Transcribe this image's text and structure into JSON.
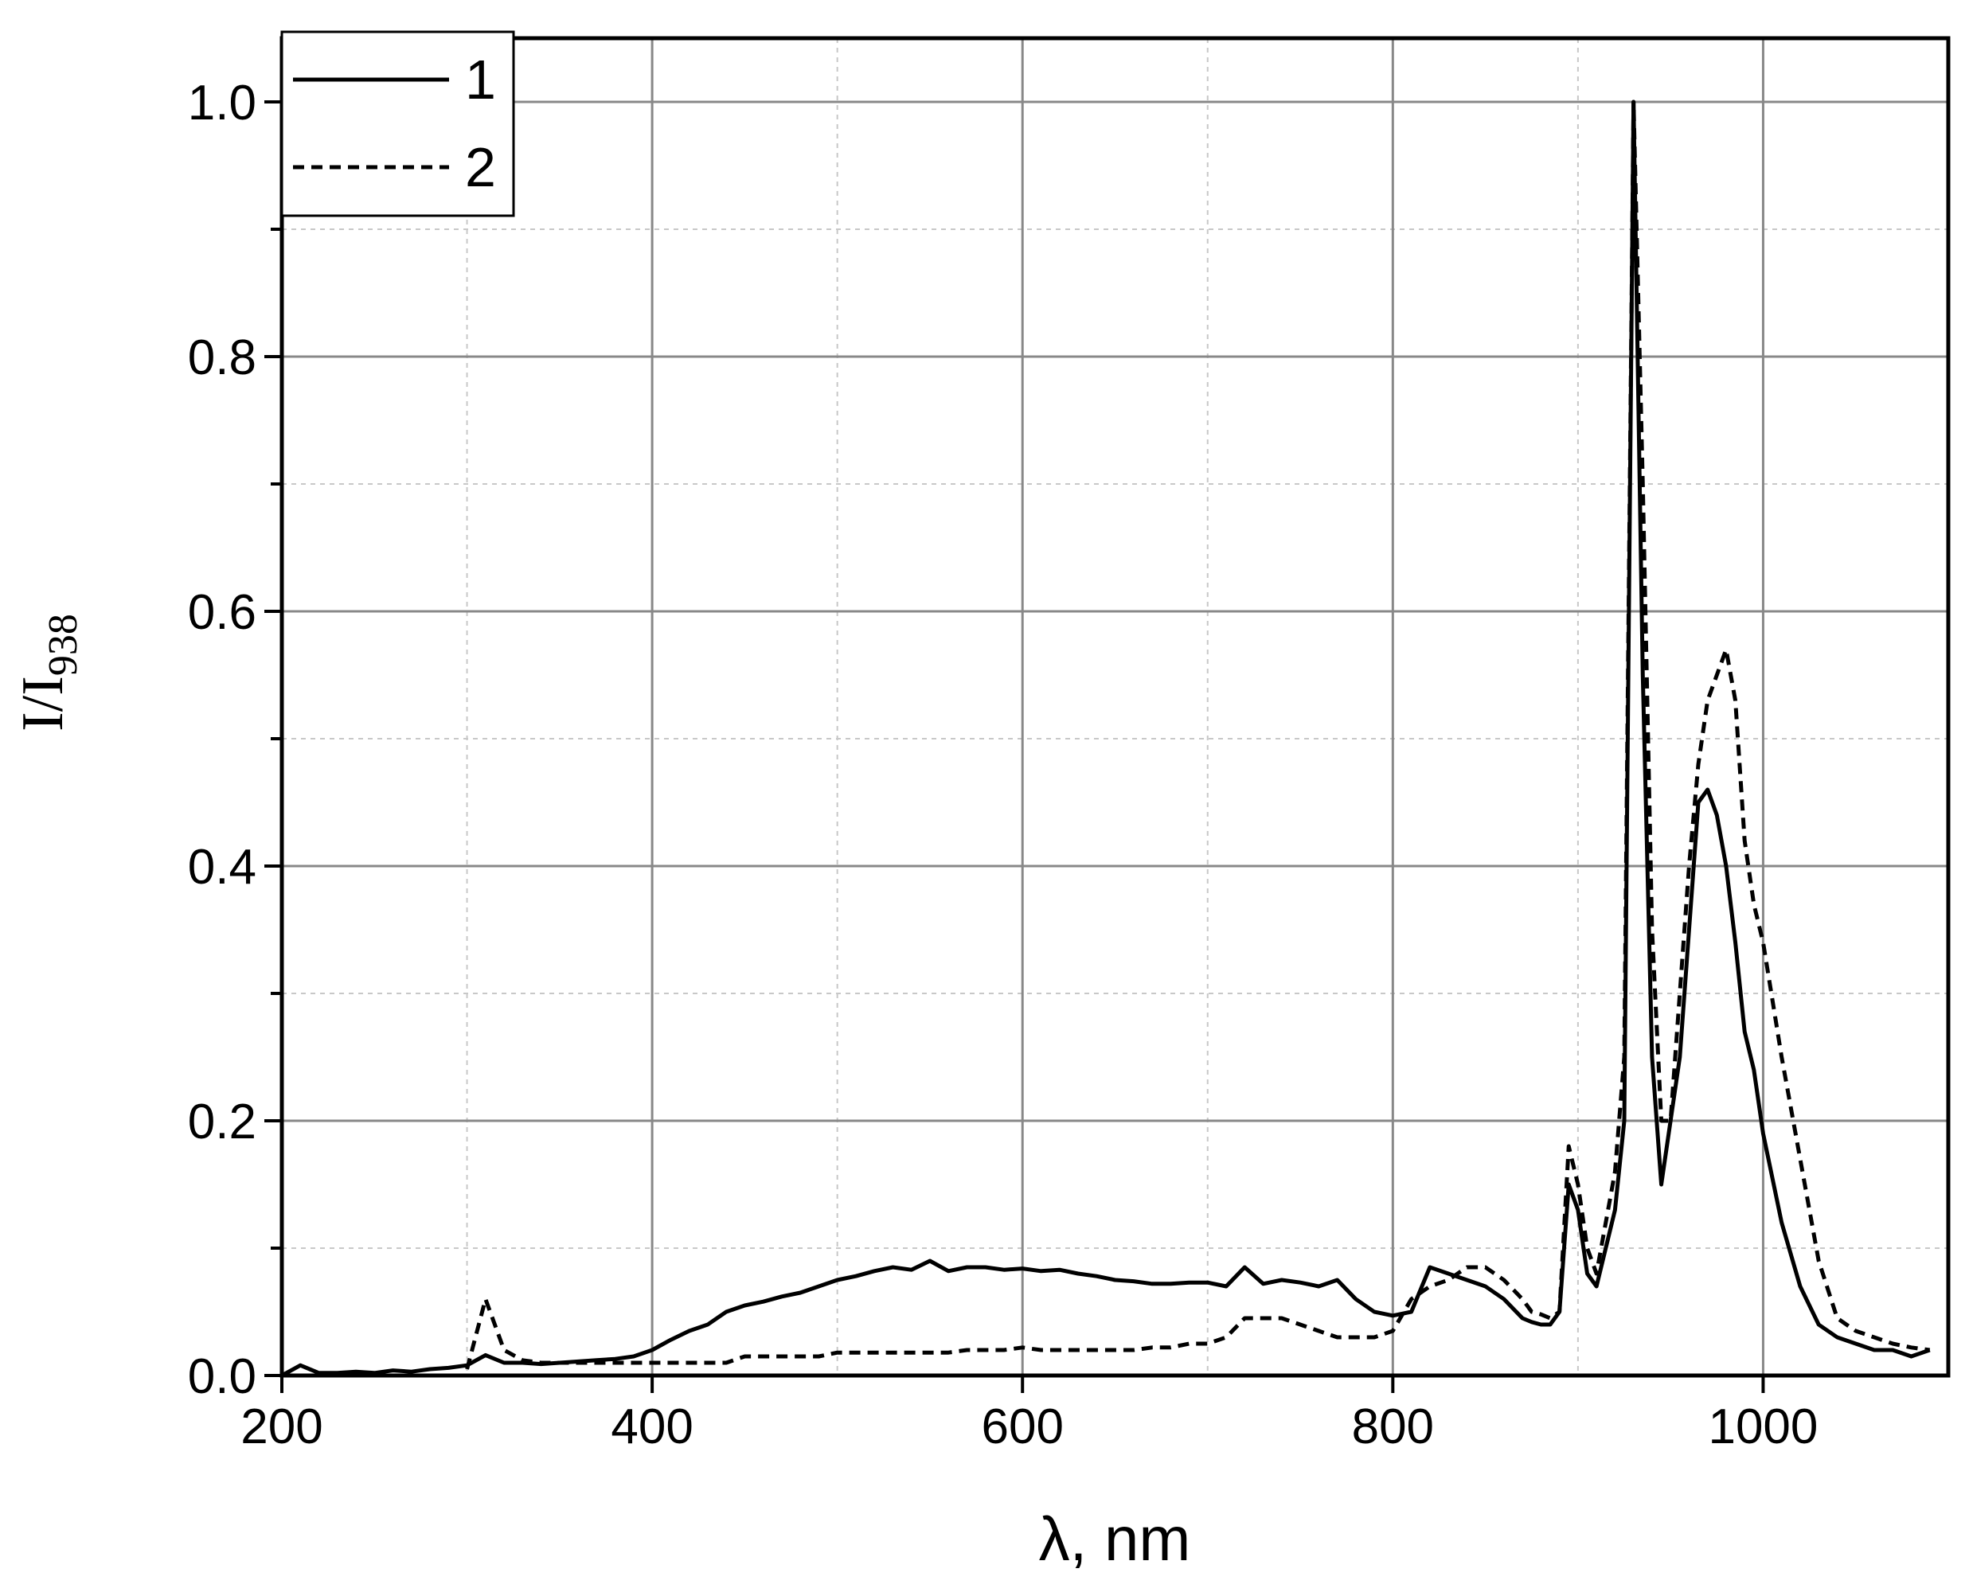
{
  "chart_data": {
    "type": "line",
    "x_label": "λ, nm",
    "y_label": "I/I",
    "y_label_subscript": "938",
    "x": [
      200,
      210,
      220,
      230,
      240,
      250,
      260,
      270,
      280,
      290,
      300,
      310,
      320,
      330,
      340,
      350,
      360,
      370,
      380,
      390,
      400,
      410,
      420,
      430,
      440,
      450,
      460,
      470,
      480,
      490,
      500,
      510,
      520,
      530,
      540,
      550,
      560,
      570,
      580,
      590,
      600,
      610,
      620,
      630,
      640,
      650,
      660,
      670,
      680,
      690,
      700,
      710,
      720,
      730,
      740,
      750,
      760,
      770,
      780,
      790,
      800,
      810,
      820,
      830,
      840,
      850,
      860,
      870,
      875,
      880,
      885,
      890,
      895,
      900,
      905,
      910,
      915,
      920,
      925,
      930,
      935,
      940,
      945,
      950,
      955,
      960,
      965,
      970,
      975,
      980,
      985,
      990,
      995,
      1000,
      1010,
      1020,
      1030,
      1040,
      1050,
      1060,
      1070,
      1080,
      1090
    ],
    "series": [
      {
        "name": "1",
        "color": "#000000",
        "dash": "solid",
        "values": [
          0,
          0.008,
          0.002,
          0.002,
          0.003,
          0.002,
          0.004,
          0.003,
          0.005,
          0.006,
          0.008,
          0.016,
          0.01,
          0.01,
          0.009,
          0.01,
          0.011,
          0.012,
          0.013,
          0.015,
          0.02,
          0.028,
          0.035,
          0.04,
          0.05,
          0.055,
          0.058,
          0.062,
          0.065,
          0.07,
          0.075,
          0.078,
          0.082,
          0.085,
          0.083,
          0.09,
          0.082,
          0.085,
          0.085,
          0.083,
          0.084,
          0.082,
          0.083,
          0.08,
          0.078,
          0.075,
          0.074,
          0.072,
          0.072,
          0.073,
          0.073,
          0.07,
          0.085,
          0.072,
          0.075,
          0.073,
          0.07,
          0.075,
          0.06,
          0.05,
          0.047,
          0.05,
          0.085,
          0.08,
          0.075,
          0.07,
          0.06,
          0.045,
          0.042,
          0.04,
          0.04,
          0.05,
          0.15,
          0.13,
          0.08,
          0.07,
          0.1,
          0.13,
          0.2,
          1.0,
          0.55,
          0.25,
          0.15,
          0.2,
          0.25,
          0.35,
          0.45,
          0.46,
          0.44,
          0.4,
          0.34,
          0.27,
          0.24,
          0.19,
          0.12,
          0.07,
          0.04,
          0.03,
          0.025,
          0.02,
          0.02,
          0.015,
          0.02
        ]
      },
      {
        "name": "2",
        "color": "#000000",
        "dash": "dashed",
        "values": [
          null,
          null,
          null,
          null,
          null,
          null,
          null,
          null,
          null,
          null,
          0.005,
          0.06,
          0.02,
          0.012,
          0.01,
          0.01,
          0.01,
          0.01,
          0.01,
          0.01,
          0.01,
          0.01,
          0.01,
          0.01,
          0.01,
          0.015,
          0.015,
          0.015,
          0.015,
          0.015,
          0.018,
          0.018,
          0.018,
          0.018,
          0.018,
          0.018,
          0.018,
          0.02,
          0.02,
          0.02,
          0.022,
          0.02,
          0.02,
          0.02,
          0.02,
          0.02,
          0.02,
          0.022,
          0.022,
          0.025,
          0.025,
          0.03,
          0.045,
          0.045,
          0.045,
          0.04,
          0.035,
          0.03,
          0.03,
          0.03,
          0.035,
          0.06,
          0.07,
          0.075,
          0.085,
          0.085,
          0.075,
          0.06,
          0.05,
          0.048,
          0.045,
          0.05,
          0.18,
          0.15,
          0.1,
          0.08,
          0.12,
          0.16,
          0.25,
          1.0,
          0.7,
          0.35,
          0.2,
          0.2,
          0.3,
          0.4,
          0.48,
          0.53,
          0.55,
          0.57,
          0.53,
          0.42,
          0.37,
          0.34,
          0.25,
          0.17,
          0.09,
          0.045,
          0.035,
          0.03,
          0.025,
          0.022,
          0.02
        ]
      }
    ],
    "xlim": [
      200,
      1100
    ],
    "xticks": [
      200,
      400,
      600,
      800,
      1000
    ],
    "ylim": [
      0,
      1.05
    ],
    "yticks": [
      {
        "value": 0,
        "label": "0.0"
      },
      0.2,
      0.4,
      0.6,
      0.8,
      {
        "value": 1,
        "label": "1.0"
      }
    ],
    "grid": true,
    "legend": "upper left"
  }
}
